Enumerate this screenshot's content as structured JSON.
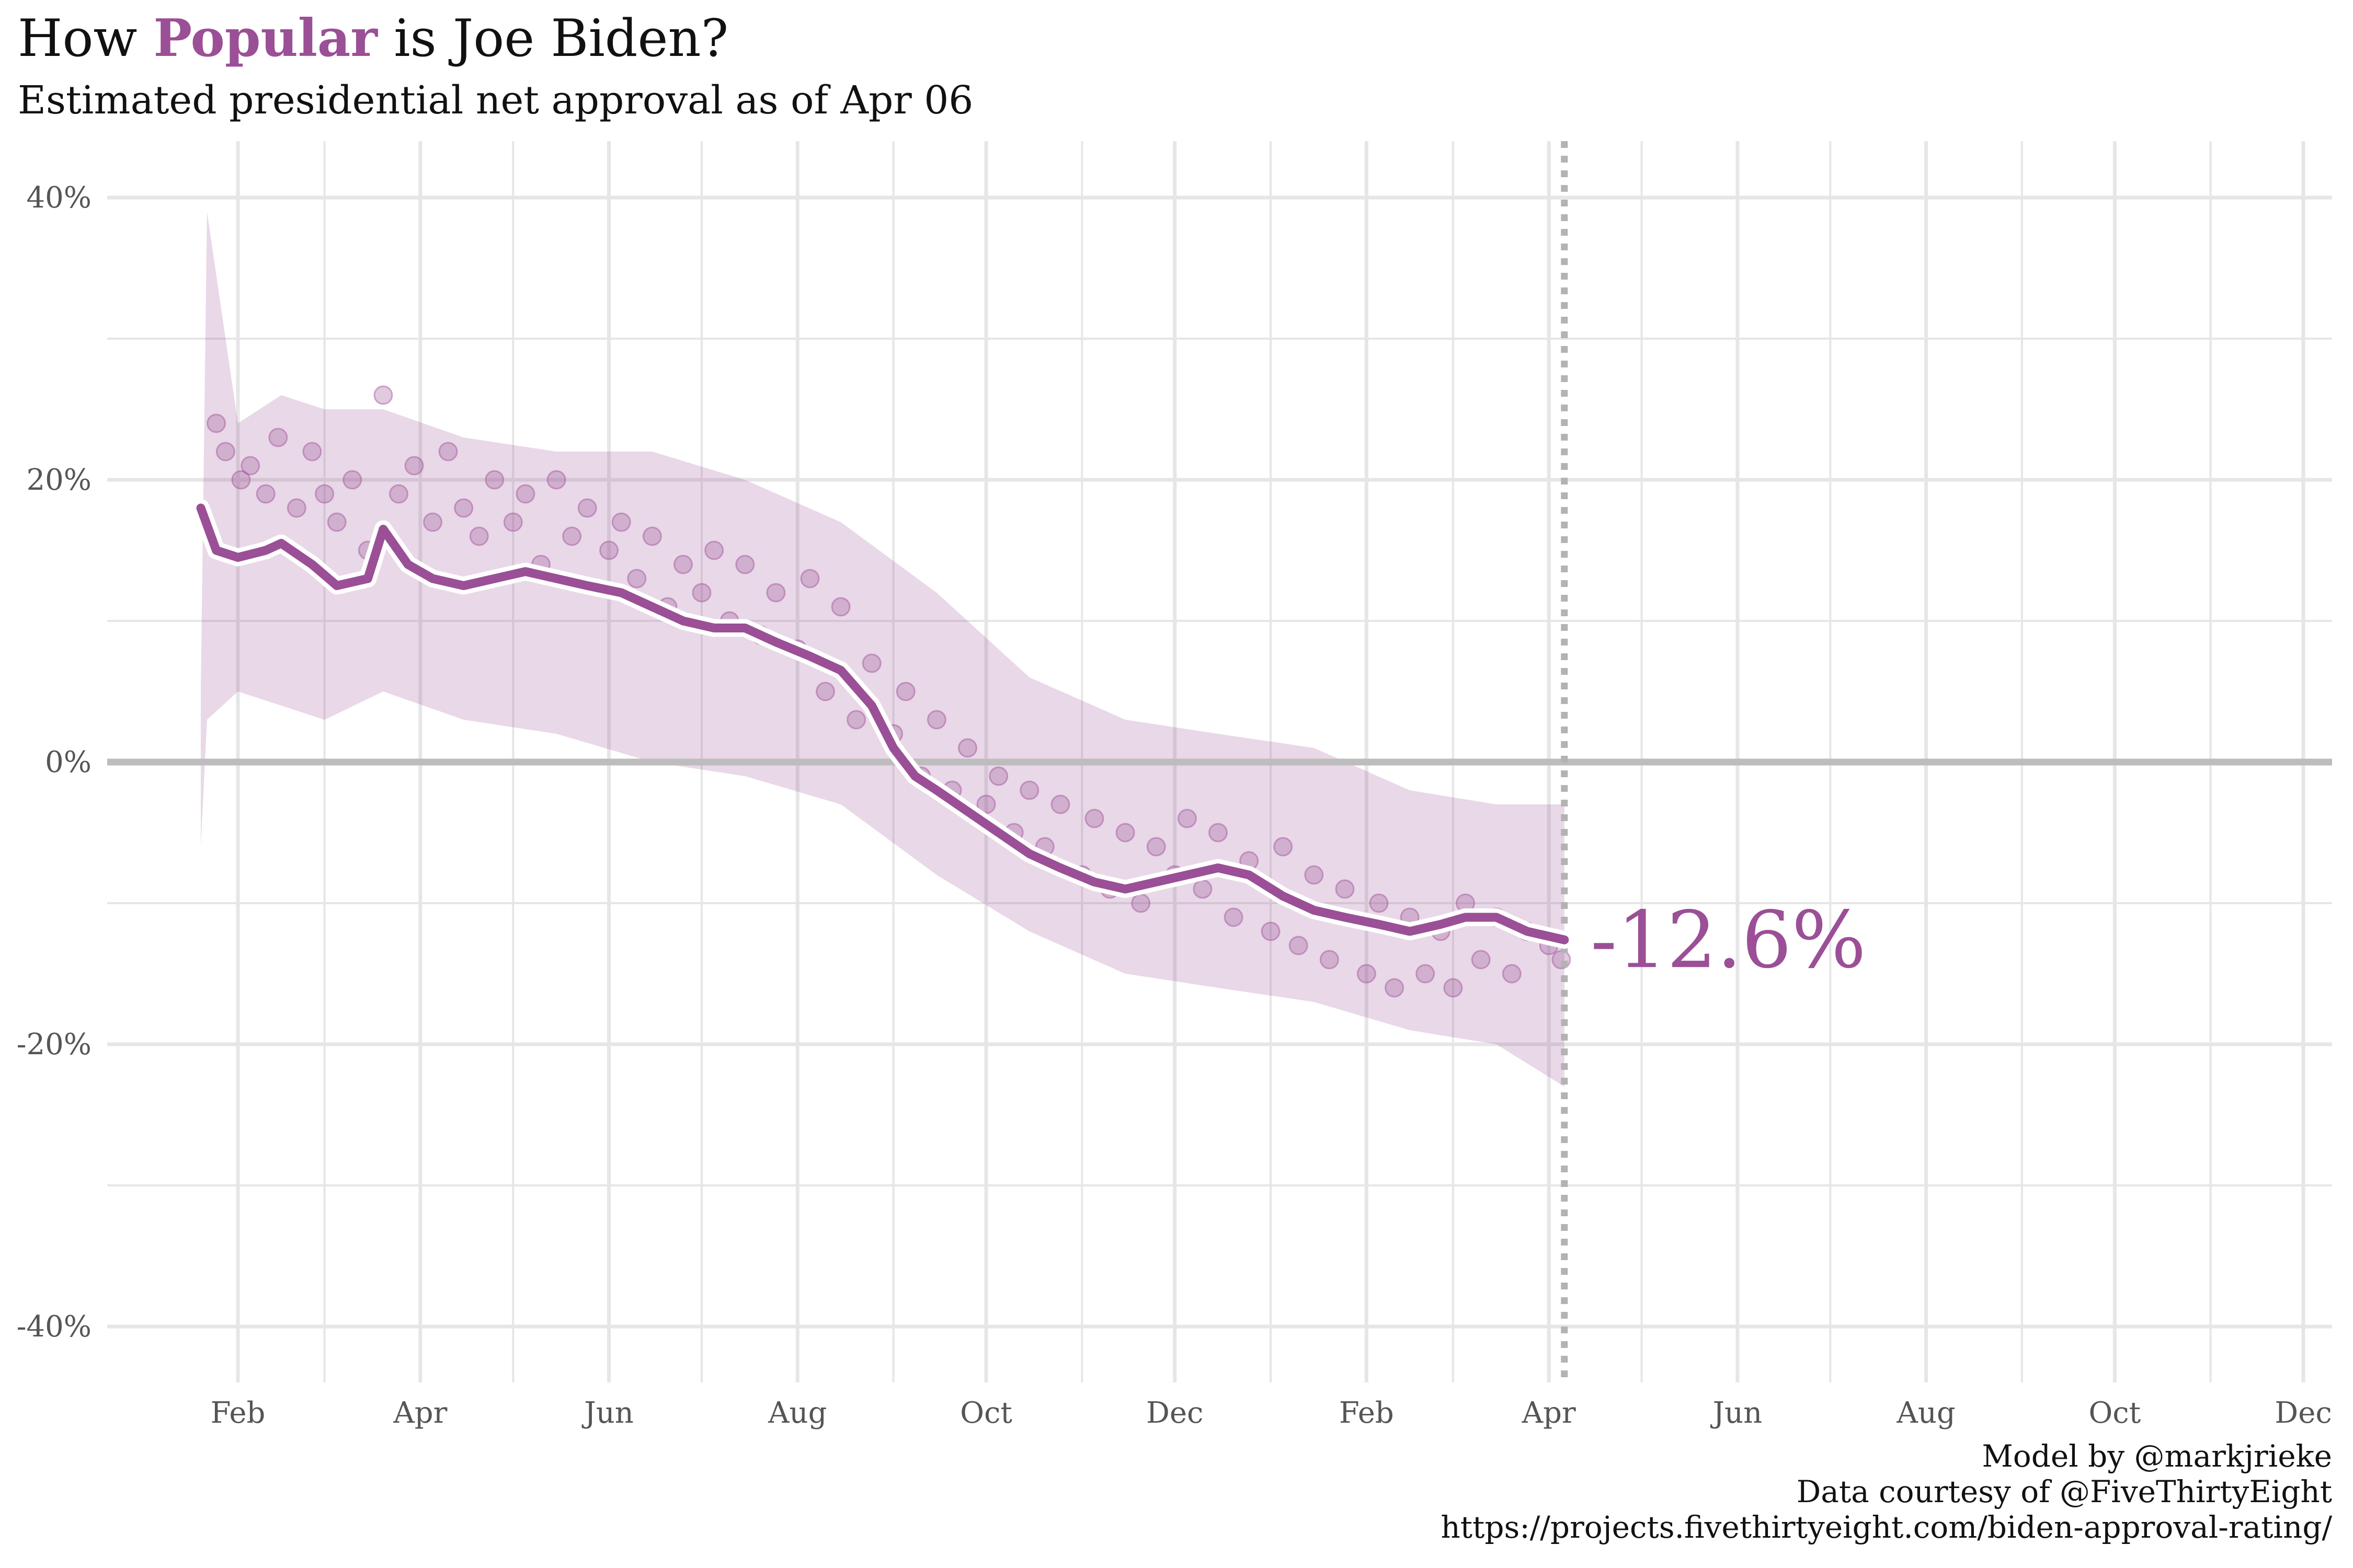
{
  "title": {
    "prefix": "How ",
    "highlight": "Popular",
    "suffix": " is Joe Biden?"
  },
  "subtitle": "Estimated presidential net approval as of Apr 06",
  "caption": {
    "line1": "Model by @markjrieke",
    "line2": "Data courtesy of @FiveThirtyEight",
    "line3": "https://projects.fivethirtyeight.com/biden-approval-rating/"
  },
  "colors": {
    "accent": "#9b4f96",
    "zero_line": "#bdbdbd",
    "grid": "#e6e6e6",
    "current_marker": "#b3b3b3"
  },
  "chart_data": {
    "type": "line",
    "title": "How Popular is Joe Biden?",
    "subtitle": "Estimated presidential net approval as of Apr 06",
    "xlabel": "",
    "ylabel": "",
    "x_ticks": [
      "Feb",
      "Apr",
      "Jun",
      "Aug",
      "Oct",
      "Dec",
      "Feb",
      "Apr",
      "Jun",
      "Aug",
      "Oct",
      "Dec"
    ],
    "y_ticks": [
      "40%",
      "20%",
      "0%",
      "-20%",
      "-40%"
    ],
    "ylim": [
      -44,
      44
    ],
    "xlim": [
      "2021-01-20",
      "2022-12-15"
    ],
    "reference_lines": {
      "horizontal_at": 0,
      "vertical_at": "2022-04-06"
    },
    "current_value_label": "-12.6%",
    "series": [
      {
        "type": "line",
        "x": [
          "2021-01-20",
          "2021-01-25",
          "2021-02-01",
          "2021-02-10",
          "2021-02-15",
          "2021-02-25",
          "2021-03-05",
          "2021-03-15",
          "2021-03-20",
          "2021-03-28",
          "2021-04-05",
          "2021-04-15",
          "2021-04-25",
          "2021-05-05",
          "2021-05-15",
          "2021-05-25",
          "2021-06-05",
          "2021-06-15",
          "2021-06-25",
          "2021-07-05",
          "2021-07-15",
          "2021-07-25",
          "2021-08-05",
          "2021-08-15",
          "2021-08-25",
          "2021-09-01",
          "2021-09-08",
          "2021-09-15",
          "2021-09-25",
          "2021-10-05",
          "2021-10-15",
          "2021-10-25",
          "2021-11-05",
          "2021-11-15",
          "2021-11-25",
          "2021-12-05",
          "2021-12-15",
          "2021-12-25",
          "2022-01-05",
          "2022-01-15",
          "2022-01-25",
          "2022-02-05",
          "2022-02-15",
          "2022-02-25",
          "2022-03-05",
          "2022-03-15",
          "2022-03-25",
          "2022-04-06"
        ],
        "y": [
          18,
          15,
          14.5,
          15,
          15.5,
          14,
          12.5,
          13,
          16.5,
          14,
          13,
          12.5,
          13,
          13.5,
          13,
          12.5,
          12,
          11,
          10,
          9.5,
          9.5,
          8.5,
          7.5,
          6.5,
          4,
          1,
          -1,
          -2,
          -3.5,
          -5,
          -6.5,
          -7.5,
          -8.5,
          -9,
          -8.5,
          -8,
          -7.5,
          -8,
          -9.5,
          -10.5,
          -11,
          -11.5,
          -12,
          -11.5,
          -11,
          -11,
          -12,
          -12.6
        ]
      },
      {
        "type": "band",
        "x": [
          "2021-01-20",
          "2021-01-22",
          "2021-02-01",
          "2021-02-15",
          "2021-03-01",
          "2021-03-20",
          "2021-04-15",
          "2021-05-15",
          "2021-06-15",
          "2021-07-15",
          "2021-08-15",
          "2021-09-15",
          "2021-10-15",
          "2021-11-15",
          "2021-12-15",
          "2022-01-15",
          "2022-02-15",
          "2022-03-15",
          "2022-04-06"
        ],
        "upper": [
          5,
          39,
          24,
          26,
          25,
          25,
          23,
          22,
          22,
          20,
          17,
          12,
          6,
          3,
          2,
          1,
          -2,
          -3,
          -3
        ],
        "lower": [
          -6,
          3,
          5,
          4,
          3,
          5,
          3,
          2,
          0,
          -1,
          -3,
          -8,
          -12,
          -15,
          -16,
          -17,
          -19,
          -20,
          -23
        ]
      },
      {
        "type": "scatter",
        "x": [
          "2021-01-25",
          "2021-01-28",
          "2021-02-02",
          "2021-02-05",
          "2021-02-10",
          "2021-02-14",
          "2021-02-20",
          "2021-02-25",
          "2021-03-01",
          "2021-03-05",
          "2021-03-10",
          "2021-03-15",
          "2021-03-20",
          "2021-03-25",
          "2021-03-30",
          "2021-04-05",
          "2021-04-10",
          "2021-04-15",
          "2021-04-20",
          "2021-04-25",
          "2021-05-01",
          "2021-05-05",
          "2021-05-10",
          "2021-05-15",
          "2021-05-20",
          "2021-05-25",
          "2021-06-01",
          "2021-06-05",
          "2021-06-10",
          "2021-06-15",
          "2021-06-20",
          "2021-06-25",
          "2021-07-01",
          "2021-07-05",
          "2021-07-10",
          "2021-07-15",
          "2021-07-20",
          "2021-07-25",
          "2021-08-01",
          "2021-08-05",
          "2021-08-10",
          "2021-08-15",
          "2021-08-20",
          "2021-08-25",
          "2021-09-01",
          "2021-09-05",
          "2021-09-10",
          "2021-09-15",
          "2021-09-20",
          "2021-09-25",
          "2021-10-01",
          "2021-10-05",
          "2021-10-10",
          "2021-10-15",
          "2021-10-20",
          "2021-10-25",
          "2021-11-01",
          "2021-11-05",
          "2021-11-10",
          "2021-11-15",
          "2021-11-20",
          "2021-11-25",
          "2021-12-01",
          "2021-12-05",
          "2021-12-10",
          "2021-12-15",
          "2021-12-20",
          "2021-12-25",
          "2022-01-01",
          "2022-01-05",
          "2022-01-10",
          "2022-01-15",
          "2022-01-20",
          "2022-01-25",
          "2022-02-01",
          "2022-02-05",
          "2022-02-10",
          "2022-02-15",
          "2022-02-20",
          "2022-02-25",
          "2022-03-01",
          "2022-03-05",
          "2022-03-10",
          "2022-03-15",
          "2022-03-20",
          "2022-03-25",
          "2022-04-01",
          "2022-04-05"
        ],
        "y": [
          24,
          22,
          20,
          21,
          19,
          23,
          18,
          22,
          19,
          17,
          20,
          15,
          26,
          19,
          21,
          17,
          22,
          18,
          16,
          20,
          17,
          19,
          14,
          20,
          16,
          18,
          15,
          17,
          13,
          16,
          11,
          14,
          12,
          15,
          10,
          14,
          9,
          12,
          8,
          13,
          5,
          11,
          3,
          7,
          2,
          5,
          -1,
          3,
          -2,
          1,
          -3,
          -1,
          -5,
          -2,
          -6,
          -3,
          -8,
          -4,
          -9,
          -5,
          -10,
          -6,
          -8,
          -4,
          -9,
          -5,
          -11,
          -7,
          -12,
          -6,
          -13,
          -8,
          -14,
          -9,
          -15,
          -10,
          -16,
          -11,
          -15,
          -12,
          -16,
          -10,
          -14,
          -11,
          -15,
          -12,
          -13,
          -14
        ]
      }
    ]
  }
}
